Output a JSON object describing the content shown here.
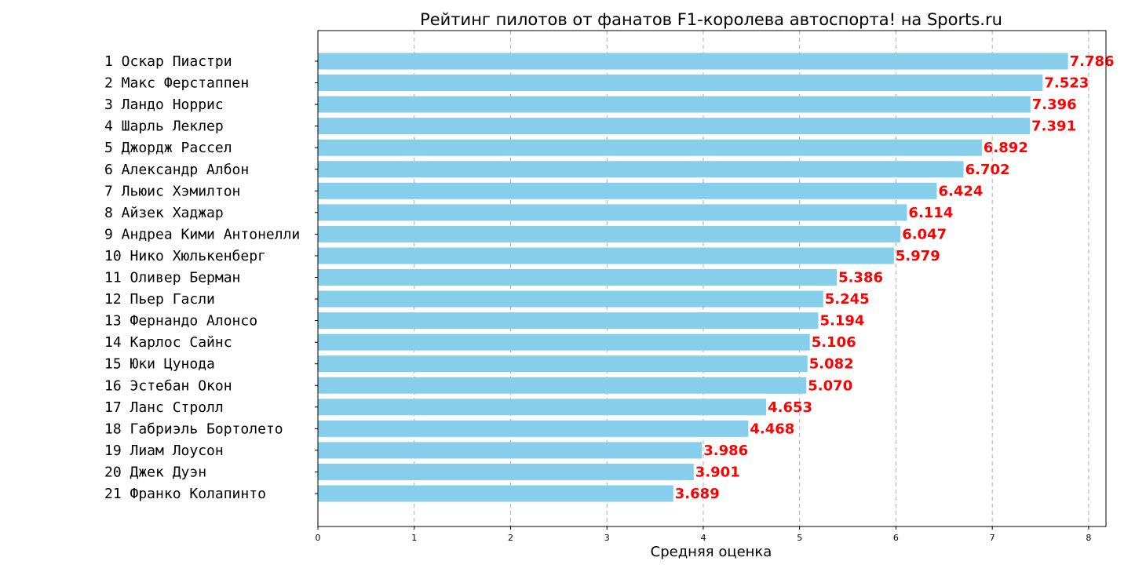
{
  "chart_data": {
    "type": "bar",
    "orientation": "horizontal",
    "title": "Рейтинг пилотов от фанатов F1-королева автоспорта! на Sports.ru",
    "xlabel": "Средняя оценка",
    "ylabel": "",
    "xlim": [
      0,
      8.18
    ],
    "xticks": [
      0,
      1,
      2,
      3,
      4,
      5,
      6,
      7,
      8
    ],
    "grid": "vertical-dashed",
    "bar_color": "#87ceeb",
    "label_color": "#ff0000",
    "categories": [
      "1 Оскар Пиастри",
      "2 Макс Ферстаппен",
      "3 Ландо Норрис",
      "4 Шарль Леклер",
      "5 Джордж Рассел",
      "6 Александр Албон",
      "7 Льюис Хэмилтон",
      "8 Айзек Хаджар",
      "9 Андреа Кими Антонелли",
      "10 Нико Хюлькенберг",
      "11 Оливер Берман",
      "12 Пьер Гасли",
      "13 Фернандо Алонсо",
      "14 Карлос Сайнс",
      "15 Юки Цунода",
      "16 Эстебан Окон",
      "17 Ланс Стролл",
      "18 Габриэль Бортолето",
      "19 Лиам Лоусон",
      "20 Джек Дуэн",
      "21 Франко Колапинто"
    ],
    "values": [
      7.786,
      7.523,
      7.396,
      7.391,
      6.892,
      6.702,
      6.424,
      6.114,
      6.047,
      5.979,
      5.386,
      5.245,
      5.194,
      5.106,
      5.082,
      5.07,
      4.653,
      4.468,
      3.986,
      3.901,
      3.689
    ],
    "value_labels": [
      "7.786",
      "7.523",
      "7.396",
      "7.391",
      "6.892",
      "6.702",
      "6.424",
      "6.114",
      "6.047",
      "5.979",
      "5.386",
      "5.245",
      "5.194",
      "5.106",
      "5.082",
      "5.070",
      "4.653",
      "4.468",
      "3.986",
      "3.901",
      "3.689"
    ]
  }
}
